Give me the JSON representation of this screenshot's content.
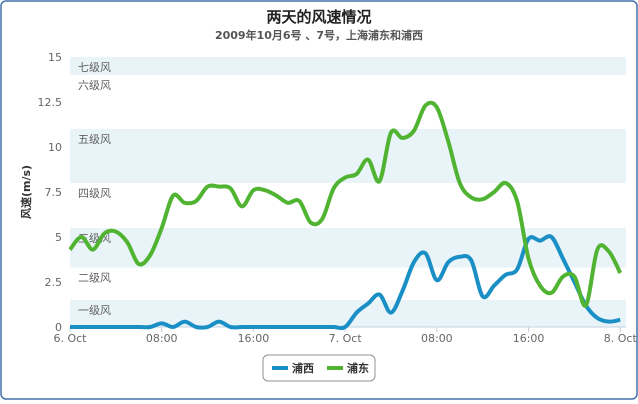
{
  "chart_data": {
    "type": "spline",
    "title": "两天的风速情况",
    "subtitle": "2009年10月6号 、7号，上海浦东和浦西",
    "y_axis_label": "风速(m/s)",
    "x": [
      0,
      1,
      2,
      3,
      4,
      5,
      6,
      7,
      8,
      9,
      10,
      11,
      12,
      13,
      14,
      15,
      16,
      17,
      18,
      19,
      20,
      21,
      22,
      23,
      24,
      25,
      26,
      27,
      28,
      29,
      30,
      31,
      32,
      33,
      34,
      35,
      36,
      37,
      38,
      39,
      40,
      41,
      42,
      43,
      44,
      45,
      46,
      47,
      48
    ],
    "xlim": [
      0,
      48.5
    ],
    "xticks": [
      {
        "value": 0,
        "label": "6. Oct"
      },
      {
        "value": 8,
        "label": "08:00"
      },
      {
        "value": 16,
        "label": "16:00"
      },
      {
        "value": 24,
        "label": "7. Oct"
      },
      {
        "value": 32,
        "label": "08:00"
      },
      {
        "value": 40,
        "label": "16:00"
      },
      {
        "value": 48,
        "label": "8. Oct"
      }
    ],
    "ylim": [
      0,
      15
    ],
    "yticks": [
      0,
      2.5,
      5,
      7.5,
      10,
      12.5,
      15
    ],
    "plot_bands": [
      {
        "from": 0,
        "to": 1.5,
        "label": "一级风",
        "color": "#e9f4f8"
      },
      {
        "from": 1.5,
        "to": 3.3,
        "label": "二级风",
        "color": "#ffffff"
      },
      {
        "from": 3.3,
        "to": 5.5,
        "label": "三级风",
        "color": "#e9f4f8"
      },
      {
        "from": 5.5,
        "to": 8,
        "label": "四级风",
        "color": "#ffffff"
      },
      {
        "from": 8,
        "to": 11,
        "label": "五级风",
        "color": "#e9f4f8"
      },
      {
        "from": 11,
        "to": 14,
        "label": "六级风",
        "color": "#ffffff"
      },
      {
        "from": 14,
        "to": 15,
        "label": "七级风",
        "color": "#e9f4f8"
      }
    ],
    "series": [
      {
        "name": "浦西",
        "color": "#1a8fc6",
        "values": [
          0,
          0,
          0,
          0,
          0,
          0,
          0,
          0,
          0.2,
          0,
          0.3,
          0,
          0,
          0.3,
          0,
          0,
          0,
          0,
          0,
          0,
          0,
          0,
          0,
          0,
          0,
          0.8,
          1.3,
          1.8,
          0.8,
          2.0,
          3.6,
          4.1,
          2.6,
          3.6,
          3.9,
          3.7,
          1.7,
          2.3,
          2.9,
          3.2,
          4.9,
          4.8,
          5.0,
          3.8,
          2.5,
          1.2,
          0.5,
          0.3,
          0.4
        ]
      },
      {
        "name": "浦东",
        "color": "#50b432",
        "values": [
          4.3,
          5.0,
          4.3,
          5.2,
          5.3,
          4.7,
          3.5,
          4.0,
          5.5,
          7.3,
          6.9,
          7.0,
          7.8,
          7.8,
          7.7,
          6.7,
          7.6,
          7.6,
          7.3,
          6.9,
          7.0,
          5.8,
          6.0,
          7.7,
          8.3,
          8.5,
          9.3,
          8.1,
          10.8,
          10.5,
          10.9,
          12.3,
          12.2,
          10.3,
          8.0,
          7.2,
          7.1,
          7.5,
          8.0,
          7.0,
          3.8,
          2.3,
          1.9,
          2.8,
          2.8,
          1.2,
          4.3,
          4.2,
          3.0
        ]
      }
    ]
  }
}
